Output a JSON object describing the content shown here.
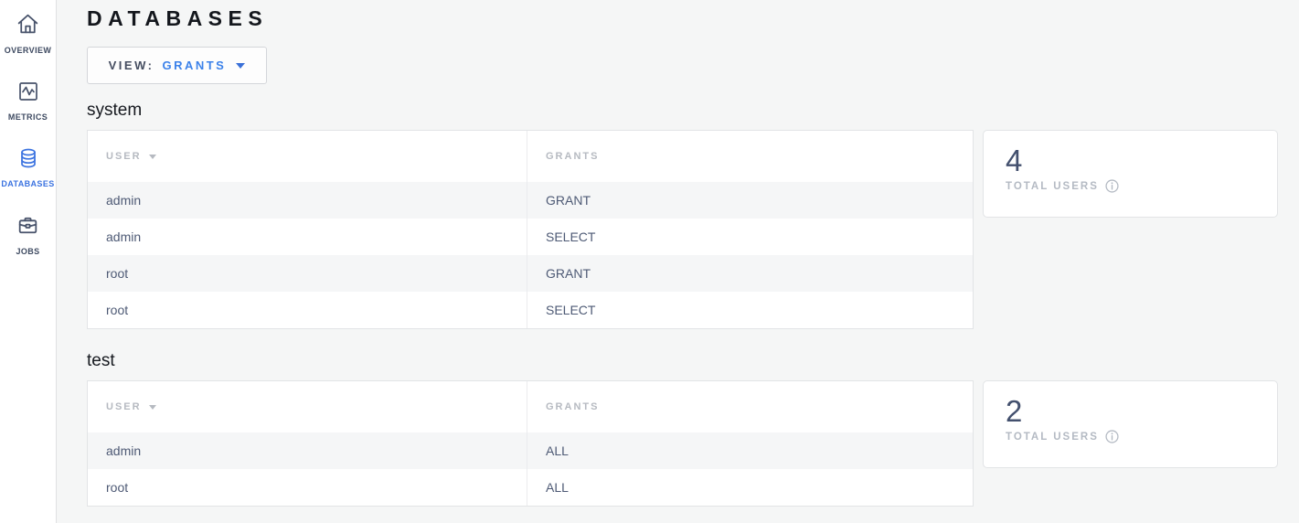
{
  "page": {
    "title": "DATABASES"
  },
  "view_selector": {
    "label": "VIEW:",
    "value": "GRANTS"
  },
  "sidebar": {
    "items": [
      {
        "label": "OVERVIEW",
        "icon": "home-icon",
        "active": false
      },
      {
        "label": "METRICS",
        "icon": "metrics-icon",
        "active": false
      },
      {
        "label": "DATABASES",
        "icon": "database-icon",
        "active": true
      },
      {
        "label": "JOBS",
        "icon": "briefcase-icon",
        "active": false
      }
    ]
  },
  "sections": [
    {
      "name": "system",
      "table": {
        "columns": [
          "USER",
          "GRANTS"
        ],
        "rows": [
          [
            "admin",
            "GRANT"
          ],
          [
            "admin",
            "SELECT"
          ],
          [
            "root",
            "GRANT"
          ],
          [
            "root",
            "SELECT"
          ]
        ]
      },
      "summary": {
        "value": "4",
        "label": "TOTAL USERS"
      }
    },
    {
      "name": "test",
      "table": {
        "columns": [
          "USER",
          "GRANTS"
        ],
        "rows": [
          [
            "admin",
            "ALL"
          ],
          [
            "root",
            "ALL"
          ]
        ]
      },
      "summary": {
        "value": "2",
        "label": "TOTAL USERS"
      }
    }
  ],
  "colors": {
    "accent_blue": "#3a72e0",
    "link_blue": "#3c82ea",
    "slate_text": "#4e5a75",
    "muted_gray": "#b6bac1",
    "summary_number": "#43506e",
    "page_background": "#f5f6f6"
  }
}
